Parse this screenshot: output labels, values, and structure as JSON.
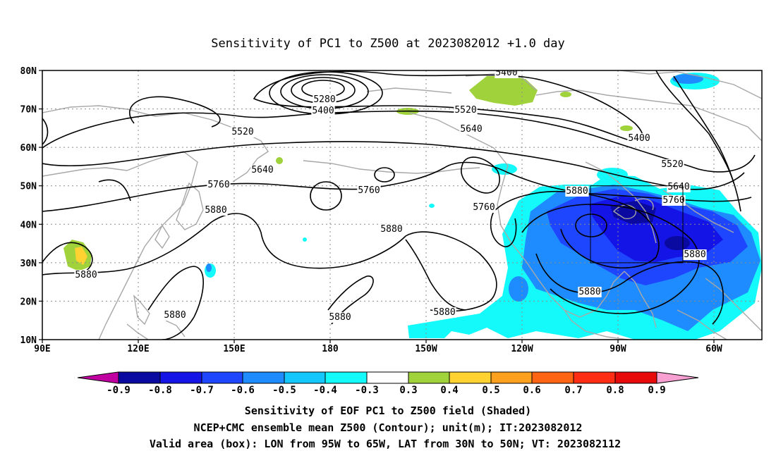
{
  "title": "Sensitivity of PC1 to Z500 at 2023082012 +1.0 day",
  "lat_ticks": [
    "80N",
    "70N",
    "60N",
    "50N",
    "40N",
    "30N",
    "20N",
    "10N"
  ],
  "lon_ticks": [
    "90E",
    "120E",
    "150E",
    "180",
    "150W",
    "120W",
    "90W",
    "60W"
  ],
  "contours": {
    "levels": [
      "5280",
      "5400",
      "5520",
      "5640",
      "5760",
      "5880"
    ],
    "labels": [
      "5400",
      "5280",
      "5400",
      "5520",
      "5520",
      "5640",
      "5400",
      "5640",
      "5520",
      "5760",
      "5760",
      "5640",
      "5760",
      "5880",
      "5880",
      "5760",
      "5880",
      "5880",
      "5880",
      "5880",
      "5880",
      "5880",
      "5880"
    ]
  },
  "colorbar": {
    "ticks": [
      "-0.9",
      "-0.8",
      "-0.7",
      "-0.6",
      "-0.5",
      "-0.4",
      "-0.3",
      "0.3",
      "0.4",
      "0.5",
      "0.6",
      "0.7",
      "0.8",
      "0.9"
    ],
    "colors": [
      "#c000a0",
      "#0a0aa0",
      "#1414e6",
      "#1e46ff",
      "#1e8cff",
      "#14c8ff",
      "#14fafa",
      "#ffffff",
      "#a0d23c",
      "#ffd232",
      "#ffa01e",
      "#ff6414",
      "#ff2d14",
      "#e60a0a",
      "#f8a0d2"
    ]
  },
  "valid_box": {
    "lon_from": "95W",
    "lon_to": "65W",
    "lat_from": "30N",
    "lat_to": "50N"
  },
  "caption": {
    "line1": "Sensitivity of EOF PC1 to Z500 field (Shaded)",
    "line2": "NCEP+CMC ensemble mean Z500 (Contour); unit(m); IT:2023082012",
    "line3": "Valid area (box): LON from 95W to 65W, LAT from 30N to 50N; VT: 2023082112"
  }
}
